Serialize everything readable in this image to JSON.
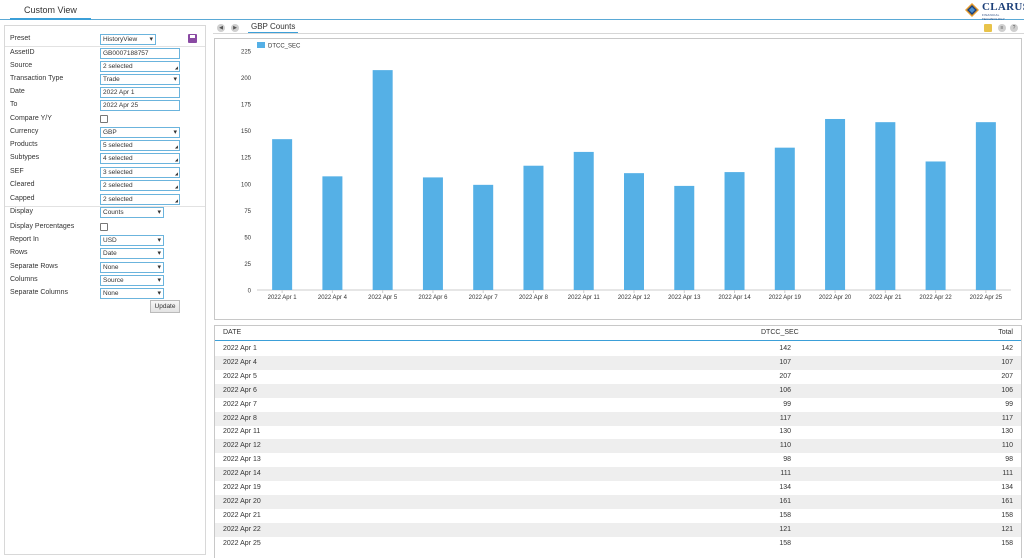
{
  "header": {
    "tab_label": "Custom View",
    "logo_text": "CLARUS",
    "logo_subtext": "FINANCIAL TECHNOLOGY",
    "logo_icon": "clarus-diamond-icon",
    "accent": "#3b9fd8"
  },
  "form": {
    "preset": {
      "label": "Preset",
      "value": "HistoryView"
    },
    "assetid": {
      "label": "AssetID",
      "value": "GB0007188757"
    },
    "source": {
      "label": "Source",
      "value": "2 selected"
    },
    "transaction_type": {
      "label": "Transaction Type",
      "value": "Trade"
    },
    "date": {
      "label": "Date",
      "value": "2022 Apr 1"
    },
    "to": {
      "label": "To",
      "value": "2022 Apr 25"
    },
    "compare_yy": {
      "label": "Compare Y/Y",
      "checked": false
    },
    "currency": {
      "label": "Currency",
      "value": "GBP"
    },
    "products": {
      "label": "Products",
      "value": "5 selected"
    },
    "subtypes": {
      "label": "Subtypes",
      "value": "4 selected"
    },
    "sef": {
      "label": "SEF",
      "value": "3 selected"
    },
    "cleared": {
      "label": "Cleared",
      "value": "2 selected"
    },
    "capped": {
      "label": "Capped",
      "value": "2 selected"
    },
    "display": {
      "label": "Display",
      "value": "Counts"
    },
    "display_percentages": {
      "label": "Display Percentages",
      "checked": false
    },
    "report_in": {
      "label": "Report In",
      "value": "USD"
    },
    "rows": {
      "label": "Rows",
      "value": "Date"
    },
    "separate_rows": {
      "label": "Separate Rows",
      "value": "None"
    },
    "columns": {
      "label": "Columns",
      "value": "Source"
    },
    "separate_columns": {
      "label": "Separate Columns",
      "value": "None"
    },
    "update_label": "Update",
    "save_icon": "floppy-disk-icon"
  },
  "chart_panel": {
    "tab_label": "GBP Counts"
  },
  "chart_data": {
    "type": "bar",
    "title": "",
    "xlabel": "",
    "ylabel": "",
    "ylim": [
      0,
      225
    ],
    "yticks": [
      0,
      25,
      50,
      75,
      100,
      125,
      150,
      175,
      200,
      225
    ],
    "legend_position": "top-left",
    "grid": false,
    "categories": [
      "2022 Apr 1",
      "2022 Apr 4",
      "2022 Apr 5",
      "2022 Apr 6",
      "2022 Apr 7",
      "2022 Apr 8",
      "2022 Apr 11",
      "2022 Apr 12",
      "2022 Apr 13",
      "2022 Apr 14",
      "2022 Apr 19",
      "2022 Apr 20",
      "2022 Apr 21",
      "2022 Apr 22",
      "2022 Apr 25"
    ],
    "series": [
      {
        "name": "DTCC_SEC",
        "color": "#55b0e6",
        "values": [
          142,
          107,
          207,
          106,
          99,
          117,
          130,
          110,
          98,
          111,
          134,
          161,
          158,
          121,
          158
        ]
      }
    ]
  },
  "table": {
    "headers": [
      "DATE",
      "DTCC_SEC",
      "Total"
    ],
    "rows": [
      [
        "2022 Apr 1",
        "142",
        "142"
      ],
      [
        "2022 Apr 4",
        "107",
        "107"
      ],
      [
        "2022 Apr 5",
        "207",
        "207"
      ],
      [
        "2022 Apr 6",
        "106",
        "106"
      ],
      [
        "2022 Apr 7",
        "99",
        "99"
      ],
      [
        "2022 Apr 8",
        "117",
        "117"
      ],
      [
        "2022 Apr 11",
        "130",
        "130"
      ],
      [
        "2022 Apr 12",
        "110",
        "110"
      ],
      [
        "2022 Apr 13",
        "98",
        "98"
      ],
      [
        "2022 Apr 14",
        "111",
        "111"
      ],
      [
        "2022 Apr 19",
        "134",
        "134"
      ],
      [
        "2022 Apr 20",
        "161",
        "161"
      ],
      [
        "2022 Apr 21",
        "158",
        "158"
      ],
      [
        "2022 Apr 22",
        "121",
        "121"
      ],
      [
        "2022 Apr 25",
        "158",
        "158"
      ]
    ]
  }
}
